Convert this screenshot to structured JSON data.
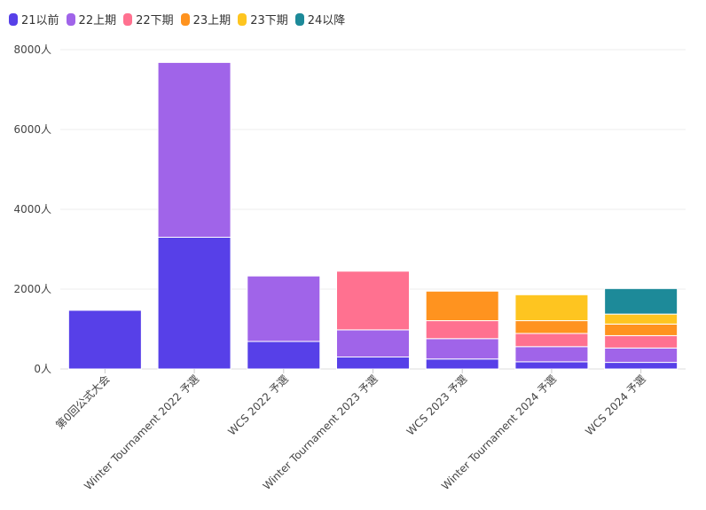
{
  "chart_data": {
    "type": "bar",
    "stacked": true,
    "title": "",
    "xlabel": "",
    "ylabel": "",
    "y_unit": "人",
    "ylim": [
      0,
      8000
    ],
    "yticks": [
      0,
      2000,
      4000,
      6000,
      8000
    ],
    "ytick_labels": [
      "0人",
      "2000人",
      "4000人",
      "6000人",
      "8000人"
    ],
    "grid": true,
    "legend_position": "top-left",
    "categories": [
      "第0回公式大会",
      "Winter Tournament 2022 予選",
      "WCS 2022 予選",
      "Winter Tournament 2023 予選",
      "WCS 2023 予選",
      "Winter Tournament 2024 予選",
      "WCS 2024 予選"
    ],
    "series": [
      {
        "name": "21以前",
        "color": "#5740e8",
        "values": [
          1470,
          3300,
          690,
          300,
          250,
          180,
          165
        ]
      },
      {
        "name": "22上期",
        "color": "#a064e9",
        "values": [
          0,
          4380,
          1640,
          680,
          510,
          380,
          360
        ]
      },
      {
        "name": "22下期",
        "color": "#ff7190",
        "values": [
          0,
          0,
          0,
          1470,
          450,
          330,
          310
        ]
      },
      {
        "name": "23上期",
        "color": "#ff931f",
        "values": [
          0,
          0,
          0,
          0,
          740,
          320,
          290
        ]
      },
      {
        "name": "23下期",
        "color": "#fec520",
        "values": [
          0,
          0,
          0,
          0,
          0,
          650,
          250
        ]
      },
      {
        "name": "24以降",
        "color": "#1d8a99",
        "values": [
          0,
          0,
          0,
          0,
          0,
          0,
          640
        ]
      }
    ]
  }
}
